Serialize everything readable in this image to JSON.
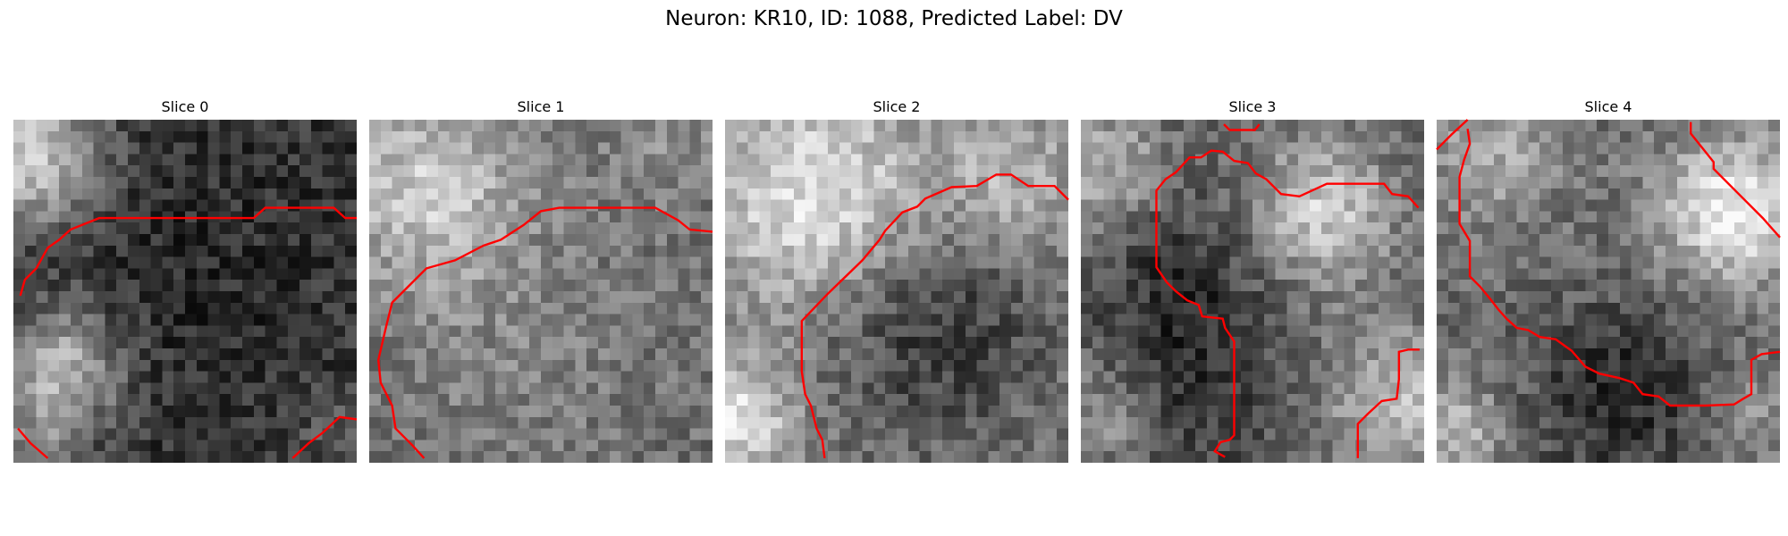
{
  "figure": {
    "title": "Neuron: KR10, ID: 1088, Predicted Label: DV",
    "colormap": "grayscale",
    "contour_color": "#ff0000"
  },
  "slices": [
    {
      "title": "Slice 0"
    },
    {
      "title": "Slice 1"
    },
    {
      "title": "Slice 2"
    },
    {
      "title": "Slice 3"
    },
    {
      "title": "Slice 4"
    }
  ]
}
